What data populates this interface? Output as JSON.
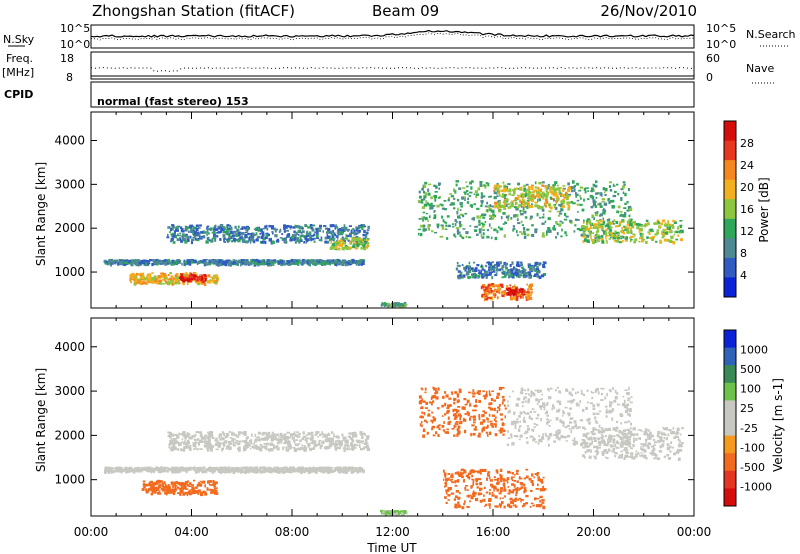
{
  "header": {
    "station": "Zhongshan Station (fitACF)",
    "beam": "Beam 09",
    "date": "26/Nov/2010"
  },
  "param_panels": {
    "nsky_label": "N.Sky",
    "nsky_ticks": [
      "10^5",
      "10^0"
    ],
    "nsearch_label": "N.Search",
    "nsearch_ticks": [
      "10^5",
      "10^0"
    ],
    "freq_label": "Freq.",
    "freq_unit": "[MHz]",
    "freq_ticks": [
      "18",
      "8"
    ],
    "nave_label": "Nave",
    "nave_ticks": [
      "60",
      "0"
    ],
    "cpid_label": "CPID",
    "cpid_value": "normal (fast stereo) 153"
  },
  "colors": {
    "power_scale": [
      "#0b23d8",
      "#2f5bc3",
      "#4e8a92",
      "#2fa75a",
      "#8cc63f",
      "#f2b01e",
      "#f5871f",
      "#e8361f",
      "#d60c0c"
    ],
    "velocity_scale": [
      "#0b23d8",
      "#2f63b8",
      "#3a8a57",
      "#6cc24a",
      "#c8c8c3",
      "#c8c8c3",
      "#f59a1e",
      "#f26a1e",
      "#e5341f",
      "#d60c0c"
    ]
  },
  "chart_data": [
    {
      "type": "heatmap",
      "parameter": "Power",
      "ylabel": "Slant Range [km]",
      "ylim": [
        180,
        4650
      ],
      "yticks": [
        "4000",
        "3000",
        "2000",
        "1000"
      ],
      "xlim": [
        0,
        24
      ],
      "colorbar_label": "Power [dB]",
      "colorbar_ticks": [
        "28",
        "24",
        "20",
        "16",
        "12",
        "8",
        "4"
      ],
      "colorbar_range": [
        0,
        32
      ],
      "echo_regions": [
        {
          "t": [
            0.5,
            10.8
          ],
          "range": [
            1200,
            1300
          ],
          "value": 8
        },
        {
          "t": [
            1.5,
            5.0
          ],
          "range": [
            750,
            1000
          ],
          "value": 20
        },
        {
          "t": [
            3.5,
            4.5
          ],
          "range": [
            820,
            980
          ],
          "value": 28
        },
        {
          "t": [
            3.0,
            11.0
          ],
          "range": [
            1700,
            2100
          ],
          "value": 8
        },
        {
          "t": [
            9.5,
            11.0
          ],
          "range": [
            1550,
            1800
          ],
          "value": 16
        },
        {
          "t": [
            13.0,
            21.5
          ],
          "range": [
            1800,
            3100
          ],
          "value": 12
        },
        {
          "t": [
            16.0,
            19.0
          ],
          "range": [
            2500,
            3000
          ],
          "value": 18
        },
        {
          "t": [
            19.5,
            23.5
          ],
          "range": [
            1700,
            2200
          ],
          "value": 16
        },
        {
          "t": [
            14.5,
            18.0
          ],
          "range": [
            900,
            1250
          ],
          "value": 8
        },
        {
          "t": [
            15.5,
            17.5
          ],
          "range": [
            400,
            750
          ],
          "value": 24
        },
        {
          "t": [
            16.5,
            17.2
          ],
          "range": [
            500,
            650
          ],
          "value": 30
        },
        {
          "t": [
            11.5,
            12.5
          ],
          "range": [
            250,
            320
          ],
          "value": 12
        }
      ]
    },
    {
      "type": "heatmap",
      "parameter": "Velocity",
      "ylabel": "Slant Range [km]",
      "ylim": [
        180,
        4650
      ],
      "yticks": [
        "4000",
        "3000",
        "2000",
        "1000"
      ],
      "xlim": [
        0,
        24
      ],
      "xlabel": "Time UT",
      "xticks": [
        "00:00",
        "04:00",
        "08:00",
        "12:00",
        "16:00",
        "20:00",
        "00:00"
      ],
      "colorbar_label": "Velocity [m s-1]",
      "colorbar_ticks": [
        "1000",
        "500",
        "100",
        "25",
        "-25",
        "-100",
        "-500",
        "-1000"
      ],
      "echo_regions": [
        {
          "t": [
            0.5,
            10.8
          ],
          "range": [
            1200,
            1300
          ],
          "value": 0
        },
        {
          "t": [
            2.0,
            5.0
          ],
          "range": [
            700,
            1000
          ],
          "value": -300
        },
        {
          "t": [
            3.0,
            11.0
          ],
          "range": [
            1700,
            2100
          ],
          "value": 0
        },
        {
          "t": [
            13.0,
            16.5
          ],
          "range": [
            2000,
            3100
          ],
          "value": -300
        },
        {
          "t": [
            16.5,
            21.5
          ],
          "range": [
            1800,
            3100
          ],
          "value": 0
        },
        {
          "t": [
            19.5,
            23.5
          ],
          "range": [
            1500,
            2200
          ],
          "value": 0
        },
        {
          "t": [
            14.0,
            18.0
          ],
          "range": [
            400,
            1250
          ],
          "value": -300
        },
        {
          "t": [
            11.5,
            12.5
          ],
          "range": [
            250,
            320
          ],
          "value": 150
        }
      ]
    }
  ]
}
